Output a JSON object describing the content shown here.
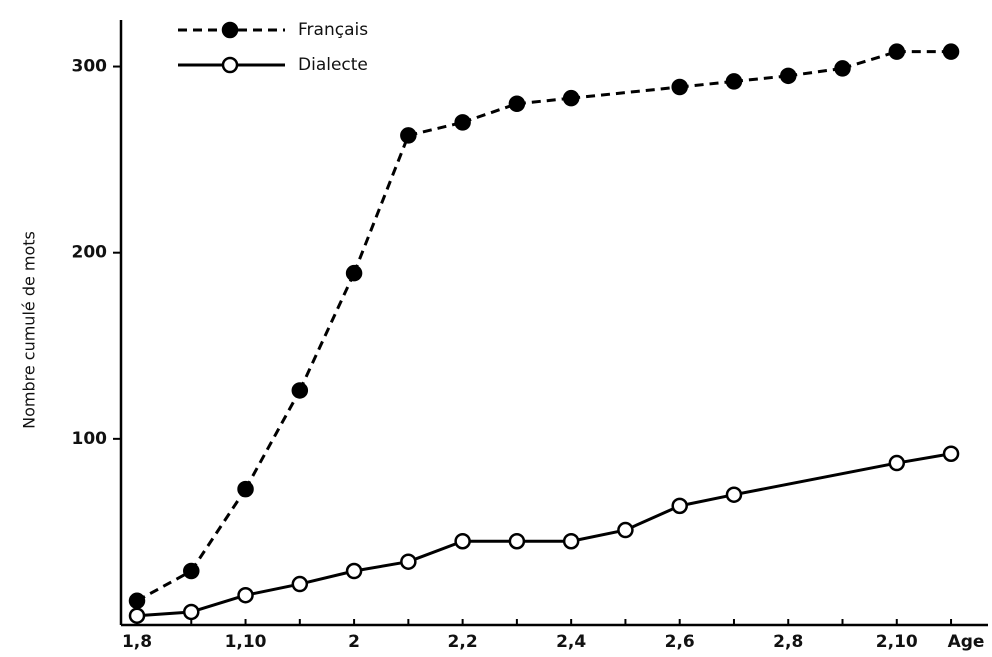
{
  "chart_data": {
    "type": "line",
    "y_label": "Nombre cumulé de mots",
    "x_label": "Age",
    "categories": [
      "1,8",
      null,
      "1,10",
      null,
      "2",
      null,
      "2,2",
      null,
      "2,4",
      null,
      "2,6",
      null,
      "2,8",
      null,
      "2,10",
      null
    ],
    "series": [
      {
        "name": "Français",
        "color": "#000000",
        "linestyle": "dashed",
        "marker": "filled",
        "values": [
          13,
          29,
          73,
          126,
          189,
          263,
          270,
          280,
          283,
          null,
          289,
          292,
          295,
          299,
          308,
          308
        ]
      },
      {
        "name": "Dialecte",
        "color": "#000000",
        "linestyle": "solid",
        "marker": "open",
        "values": [
          5,
          7,
          16,
          22,
          29,
          34,
          45,
          45,
          45,
          51,
          64,
          70,
          null,
          null,
          87,
          92
        ]
      }
    ],
    "ylim": [
      0,
      325
    ],
    "yticks": [
      100,
      200,
      300
    ],
    "grid": false
  }
}
